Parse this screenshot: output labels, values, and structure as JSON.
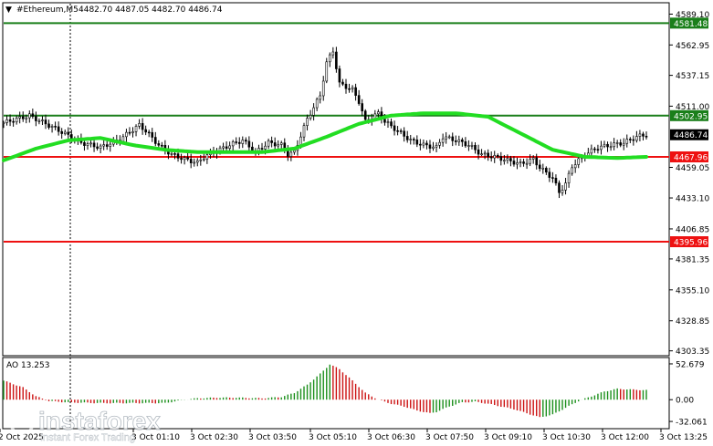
{
  "header": {
    "symbol": "#Ethereum,M5",
    "ohlc": "4482.70 4487.05 4482.70 4486.74"
  },
  "colors": {
    "candle": "#000000",
    "ma": "#22dd22",
    "green_level": "#1a7f1a",
    "red_level": "#ee1111",
    "ao_up": "#1a8f1a",
    "ao_down": "#cc1111"
  },
  "chart_data": [
    {
      "type": "line",
      "series_type": "candlestick",
      "ylim": [
        4300,
        4598
      ],
      "price_ticks": [
        "4589.10",
        "4562.95",
        "4537.15",
        "4511.00",
        "4459.05",
        "4433.10",
        "4406.85",
        "4381.35",
        "4355.10",
        "4328.85",
        "4303.35"
      ],
      "time_ticks": [
        "2 Oct 2025",
        "3 Oct 01:10",
        "3 Oct 02:30",
        "3 Oct 03:50",
        "3 Oct 05:10",
        "3 Oct 06:30",
        "3 Oct 07:50",
        "3 Oct 09:10",
        "3 Oct 10:30",
        "3 Oct 12:00",
        "3 Oct 13:25"
      ],
      "levels": [
        {
          "value": 4581.48,
          "label": "4581.48",
          "color": "green"
        },
        {
          "value": 4502.95,
          "label": "4502.95",
          "color": "green"
        },
        {
          "value": 4467.96,
          "label": "4467.96",
          "color": "red"
        },
        {
          "value": 4395.96,
          "label": "4395.96",
          "color": "red"
        }
      ],
      "current_price": "4486.74",
      "close_path": [
        [
          0,
          4497
        ],
        [
          8,
          4503
        ],
        [
          16,
          4492
        ],
        [
          24,
          4480
        ],
        [
          30,
          4476
        ],
        [
          36,
          4483
        ],
        [
          42,
          4495
        ],
        [
          44,
          4490
        ],
        [
          48,
          4478
        ],
        [
          52,
          4470
        ],
        [
          56,
          4466
        ],
        [
          60,
          4463
        ],
        [
          62,
          4468
        ],
        [
          66,
          4473
        ],
        [
          70,
          4478
        ],
        [
          74,
          4482
        ],
        [
          78,
          4472
        ],
        [
          82,
          4480
        ],
        [
          86,
          4478
        ],
        [
          88,
          4470
        ],
        [
          90,
          4472
        ],
        [
          94,
          4500
        ],
        [
          98,
          4520
        ],
        [
          100,
          4548
        ],
        [
          102,
          4558
        ],
        [
          104,
          4530
        ],
        [
          108,
          4525
        ],
        [
          110,
          4515
        ],
        [
          112,
          4498
        ],
        [
          116,
          4505
        ],
        [
          118,
          4498
        ],
        [
          122,
          4490
        ],
        [
          126,
          4482
        ],
        [
          130,
          4478
        ],
        [
          134,
          4476
        ],
        [
          136,
          4485
        ],
        [
          140,
          4482
        ],
        [
          144,
          4478
        ],
        [
          148,
          4470
        ],
        [
          152,
          4468
        ],
        [
          156,
          4465
        ],
        [
          160,
          4462
        ],
        [
          164,
          4466
        ],
        [
          166,
          4459
        ],
        [
          170,
          4450
        ],
        [
          172,
          4438
        ],
        [
          174,
          4445
        ],
        [
          176,
          4460
        ],
        [
          180,
          4470
        ],
        [
          184,
          4476
        ],
        [
          188,
          4478
        ],
        [
          192,
          4480
        ],
        [
          196,
          4485
        ],
        [
          199,
          4487
        ]
      ],
      "ma_path": [
        [
          0,
          4465
        ],
        [
          10,
          4475
        ],
        [
          20,
          4482
        ],
        [
          30,
          4484
        ],
        [
          40,
          4478
        ],
        [
          50,
          4474
        ],
        [
          60,
          4472
        ],
        [
          70,
          4472
        ],
        [
          80,
          4472
        ],
        [
          90,
          4475
        ],
        [
          100,
          4485
        ],
        [
          110,
          4496
        ],
        [
          120,
          4503
        ],
        [
          130,
          4505
        ],
        [
          140,
          4505
        ],
        [
          150,
          4502
        ],
        [
          160,
          4488
        ],
        [
          170,
          4474
        ],
        [
          180,
          4468
        ],
        [
          190,
          4467
        ],
        [
          199,
          4468
        ]
      ]
    },
    {
      "type": "bar",
      "title": "AO 13.253",
      "ylim": [
        -40,
        58
      ],
      "ticks": [
        "52.679",
        "0.00",
        "-32.061"
      ],
      "value_path": [
        [
          0,
          28
        ],
        [
          6,
          18
        ],
        [
          10,
          5
        ],
        [
          14,
          -2
        ],
        [
          20,
          -4
        ],
        [
          30,
          -5
        ],
        [
          40,
          -5
        ],
        [
          50,
          -5
        ],
        [
          56,
          0
        ],
        [
          60,
          2
        ],
        [
          66,
          3
        ],
        [
          72,
          3
        ],
        [
          80,
          2
        ],
        [
          86,
          4
        ],
        [
          90,
          10
        ],
        [
          94,
          22
        ],
        [
          98,
          38
        ],
        [
          101,
          52
        ],
        [
          104,
          45
        ],
        [
          108,
          28
        ],
        [
          112,
          10
        ],
        [
          116,
          0
        ],
        [
          120,
          -6
        ],
        [
          124,
          -10
        ],
        [
          128,
          -16
        ],
        [
          132,
          -20
        ],
        [
          134,
          -18
        ],
        [
          138,
          -10
        ],
        [
          142,
          -4
        ],
        [
          146,
          -3
        ],
        [
          150,
          -6
        ],
        [
          154,
          -10
        ],
        [
          158,
          -14
        ],
        [
          162,
          -20
        ],
        [
          166,
          -26
        ],
        [
          170,
          -22
        ],
        [
          174,
          -12
        ],
        [
          178,
          -2
        ],
        [
          182,
          5
        ],
        [
          186,
          12
        ],
        [
          190,
          16
        ],
        [
          194,
          15
        ],
        [
          199,
          14
        ]
      ]
    }
  ],
  "watermark": {
    "brand": "instaforex",
    "tagline": "Instant Forex Trading"
  }
}
